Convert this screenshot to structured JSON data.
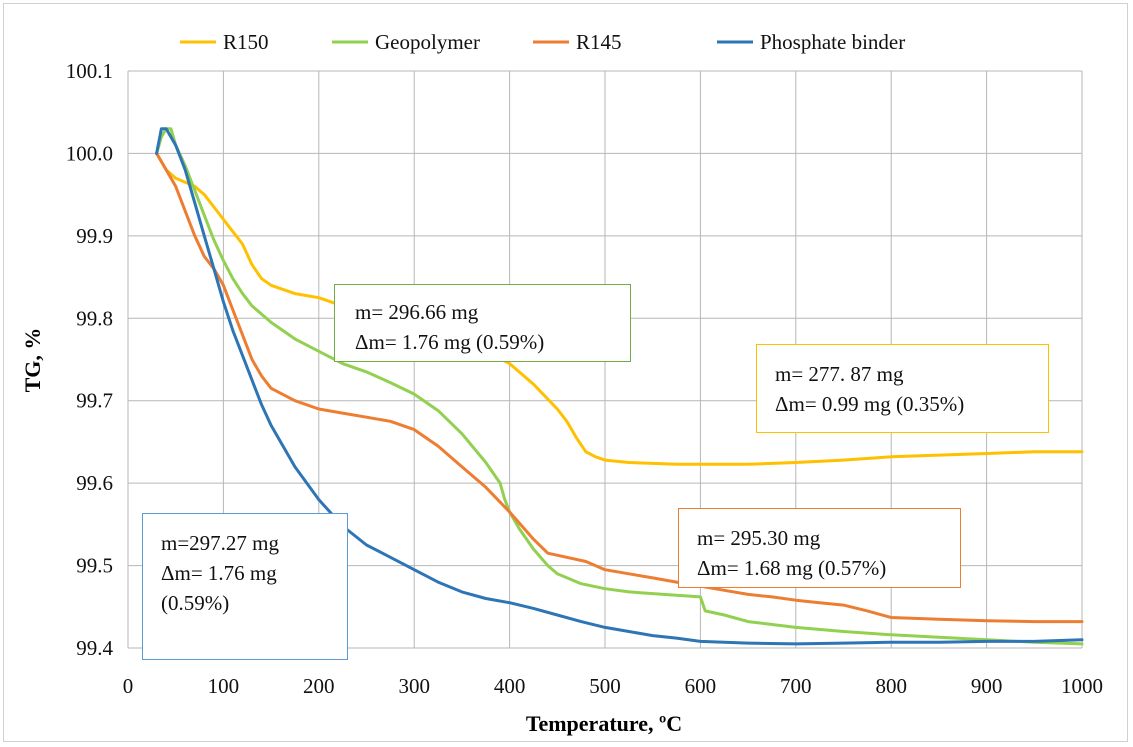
{
  "chart_data": {
    "type": "line",
    "title": "",
    "xlabel": "Temperature, ºC",
    "ylabel": "TG, %",
    "xlim": [
      0,
      1000
    ],
    "ylim": [
      99.4,
      100.1
    ],
    "x_ticks": [
      "0",
      "100",
      "200",
      "300",
      "400",
      "500",
      "600",
      "700",
      "800",
      "900",
      "1000"
    ],
    "y_ticks": [
      "99.4",
      "99.5",
      "99.6",
      "99.7",
      "99.8",
      "99.9",
      "100.0",
      "100.1"
    ],
    "grid": true,
    "legend_position": "top",
    "series": [
      {
        "name": "R150",
        "color": "#FFC000",
        "x": [
          30,
          40,
          50,
          60,
          70,
          80,
          90,
          100,
          110,
          120,
          130,
          140,
          150,
          175,
          200,
          225,
          250,
          275,
          300,
          325,
          350,
          375,
          400,
          425,
          450,
          460,
          470,
          480,
          490,
          500,
          525,
          550,
          575,
          600,
          625,
          650,
          675,
          700,
          750,
          800,
          850,
          900,
          950,
          1000
        ],
        "y": [
          100.0,
          99.98,
          99.97,
          99.965,
          99.96,
          99.95,
          99.935,
          99.92,
          99.905,
          99.89,
          99.865,
          99.848,
          99.84,
          99.83,
          99.825,
          99.815,
          99.81,
          99.8,
          99.79,
          99.78,
          99.77,
          99.76,
          99.745,
          99.72,
          99.69,
          99.675,
          99.655,
          99.638,
          99.632,
          99.628,
          99.625,
          99.624,
          99.623,
          99.623,
          99.623,
          99.623,
          99.624,
          99.625,
          99.628,
          99.632,
          99.634,
          99.636,
          99.638,
          99.638
        ]
      },
      {
        "name": "Geopolymer",
        "color": "#92D050",
        "x": [
          30,
          35,
          40,
          45,
          50,
          60,
          70,
          80,
          90,
          100,
          110,
          120,
          130,
          150,
          175,
          200,
          225,
          250,
          275,
          300,
          325,
          350,
          375,
          390,
          395,
          400,
          410,
          425,
          440,
          450,
          475,
          500,
          525,
          550,
          575,
          600,
          605,
          625,
          650,
          700,
          750,
          800,
          850,
          900,
          950,
          1000
        ],
        "y": [
          100.0,
          100.02,
          100.03,
          100.03,
          100.01,
          99.985,
          99.955,
          99.925,
          99.895,
          99.87,
          99.848,
          99.83,
          99.815,
          99.795,
          99.775,
          99.76,
          99.745,
          99.735,
          99.722,
          99.708,
          99.688,
          99.66,
          99.625,
          99.6,
          99.58,
          99.565,
          99.545,
          99.52,
          99.5,
          99.49,
          99.478,
          99.472,
          99.468,
          99.466,
          99.464,
          99.462,
          99.445,
          99.44,
          99.432,
          99.425,
          99.42,
          99.416,
          99.413,
          99.41,
          99.407,
          99.405
        ]
      },
      {
        "name": "R145",
        "color": "#ED7D31",
        "x": [
          30,
          40,
          50,
          60,
          70,
          80,
          90,
          100,
          110,
          120,
          130,
          140,
          150,
          175,
          200,
          225,
          250,
          275,
          300,
          325,
          350,
          375,
          400,
          425,
          440,
          460,
          480,
          500,
          525,
          550,
          575,
          600,
          625,
          650,
          675,
          700,
          725,
          750,
          775,
          800,
          850,
          900,
          950,
          1000
        ],
        "y": [
          100.0,
          99.98,
          99.96,
          99.93,
          99.9,
          99.875,
          99.86,
          99.84,
          99.81,
          99.78,
          99.75,
          99.73,
          99.715,
          99.7,
          99.69,
          99.685,
          99.68,
          99.675,
          99.665,
          99.645,
          99.62,
          99.595,
          99.565,
          99.532,
          99.515,
          99.51,
          99.505,
          99.495,
          99.49,
          99.485,
          99.48,
          99.475,
          99.47,
          99.465,
          99.462,
          99.458,
          99.455,
          99.452,
          99.445,
          99.437,
          99.435,
          99.433,
          99.432,
          99.432
        ]
      },
      {
        "name": "Phosphate binder",
        "color": "#2E75B6",
        "x": [
          30,
          35,
          40,
          45,
          50,
          60,
          70,
          80,
          90,
          100,
          110,
          120,
          130,
          140,
          150,
          175,
          200,
          225,
          250,
          275,
          300,
          325,
          350,
          375,
          400,
          425,
          450,
          475,
          500,
          525,
          550,
          575,
          600,
          625,
          650,
          700,
          750,
          800,
          850,
          900,
          950,
          1000
        ],
        "y": [
          100.0,
          100.03,
          100.03,
          100.02,
          100.01,
          99.98,
          99.94,
          99.9,
          99.86,
          99.82,
          99.785,
          99.755,
          99.725,
          99.695,
          99.67,
          99.62,
          99.58,
          99.548,
          99.525,
          99.51,
          99.495,
          99.48,
          99.468,
          99.46,
          99.455,
          99.448,
          99.44,
          99.432,
          99.425,
          99.42,
          99.415,
          99.412,
          99.408,
          99.407,
          99.406,
          99.405,
          99.406,
          99.407,
          99.407,
          99.408,
          99.408,
          99.41
        ]
      }
    ],
    "annotations": [
      {
        "lines": [
          "m= 296.66 mg",
          "Δm= 1.76 mg (0.59%)"
        ],
        "color": "#70AD47"
      },
      {
        "lines": [
          "m= 277. 87 mg",
          "Δm=  0.99 mg (0.35%)"
        ],
        "color": "#FFC000"
      },
      {
        "lines": [
          "m= 295.30 mg",
          "Δm=  1.68 mg (0.57%)"
        ],
        "color": "#ED7D31"
      },
      {
        "lines": [
          "m=297.27 mg",
          "Δm=  1.76 mg",
          "(0.59%)"
        ],
        "color": "#5B9BD5"
      }
    ]
  }
}
